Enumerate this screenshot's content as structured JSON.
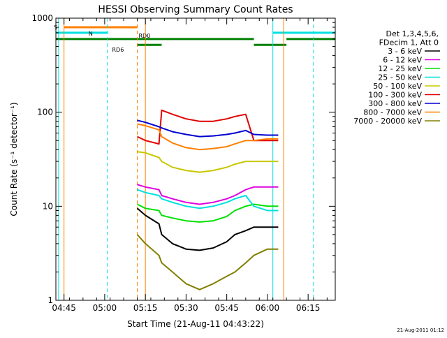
{
  "chart_data": {
    "type": "line",
    "title": "HESSI Observing Summary Count Rates",
    "xlabel": "Start Time (21-Aug-11 04:43:22)",
    "ylabel": "Count Rate (s⁻¹ detector⁻¹)",
    "x_unit": "time",
    "xlim": [
      "04:42",
      "06:25"
    ],
    "ylim": [
      1,
      1000
    ],
    "y_scale": "log",
    "x_ticks": [
      "04:45",
      "05:00",
      "05:15",
      "05:30",
      "05:45",
      "06:00",
      "06:15"
    ],
    "y_ticks": [
      "1",
      "10",
      "100",
      "1000"
    ],
    "legend_position": "right",
    "legend_header": [
      "Det 1,3,4,5,6,",
      "FDecim 1, Att 0"
    ],
    "footer_stamp": "21-Aug-2011 01:12",
    "grid": false,
    "series": [
      {
        "name": "3 - 6 keV",
        "color": "#000000",
        "points": [
          [
            "05:12",
            9.5
          ],
          [
            "05:15",
            8
          ],
          [
            "05:20",
            6.5
          ],
          [
            "05:21",
            5
          ],
          [
            "05:25",
            4
          ],
          [
            "05:30",
            3.5
          ],
          [
            "05:35",
            3.4
          ],
          [
            "05:40",
            3.6
          ],
          [
            "05:45",
            4.2
          ],
          [
            "05:48",
            5
          ],
          [
            "05:52",
            5.5
          ],
          [
            "05:55",
            6
          ],
          [
            "06:00",
            6
          ],
          [
            "06:04",
            6
          ]
        ]
      },
      {
        "name": "6 - 12 keV",
        "color": "#e000e0",
        "points": [
          [
            "05:12",
            17
          ],
          [
            "05:15",
            16
          ],
          [
            "05:20",
            15
          ],
          [
            "05:21",
            13
          ],
          [
            "05:25",
            12
          ],
          [
            "05:30",
            11
          ],
          [
            "05:35",
            10.5
          ],
          [
            "05:40",
            11
          ],
          [
            "05:45",
            12
          ],
          [
            "05:48",
            13
          ],
          [
            "05:52",
            15
          ],
          [
            "05:55",
            16
          ],
          [
            "06:00",
            16
          ],
          [
            "06:04",
            16
          ]
        ]
      },
      {
        "name": "12 - 25 keV",
        "color": "#00e000",
        "points": [
          [
            "05:12",
            10.5
          ],
          [
            "05:15",
            9.5
          ],
          [
            "05:20",
            9
          ],
          [
            "05:21",
            8
          ],
          [
            "05:25",
            7.5
          ],
          [
            "05:30",
            7
          ],
          [
            "05:35",
            6.8
          ],
          [
            "05:40",
            7
          ],
          [
            "05:45",
            7.8
          ],
          [
            "05:48",
            9
          ],
          [
            "05:52",
            10
          ],
          [
            "05:55",
            10.5
          ],
          [
            "06:00",
            10
          ],
          [
            "06:04",
            10
          ]
        ]
      },
      {
        "name": "25 - 50 keV",
        "color": "#00e0e0",
        "points": [
          [
            "05:12",
            15
          ],
          [
            "05:15",
            14
          ],
          [
            "05:20",
            13
          ],
          [
            "05:21",
            12
          ],
          [
            "05:25",
            11
          ],
          [
            "05:30",
            10
          ],
          [
            "05:35",
            9.5
          ],
          [
            "05:40",
            10
          ],
          [
            "05:45",
            11
          ],
          [
            "05:48",
            12
          ],
          [
            "05:52",
            13
          ],
          [
            "05:55",
            10
          ],
          [
            "06:00",
            9
          ],
          [
            "06:04",
            9
          ]
        ]
      },
      {
        "name": "50 - 100 keV",
        "color": "#c8c800",
        "points": [
          [
            "05:12",
            38
          ],
          [
            "05:15",
            37
          ],
          [
            "05:20",
            33
          ],
          [
            "05:21",
            30
          ],
          [
            "05:25",
            26
          ],
          [
            "05:30",
            24
          ],
          [
            "05:35",
            23
          ],
          [
            "05:40",
            24
          ],
          [
            "05:45",
            26
          ],
          [
            "05:48",
            28
          ],
          [
            "05:52",
            30
          ],
          [
            "05:55",
            30
          ],
          [
            "06:00",
            30
          ],
          [
            "06:04",
            30
          ]
        ]
      },
      {
        "name": "100 - 300 keV",
        "color": "#e00000",
        "points": [
          [
            "05:12",
            55
          ],
          [
            "05:15",
            50
          ],
          [
            "05:20",
            46
          ],
          [
            "05:21",
            105
          ],
          [
            "05:25",
            95
          ],
          [
            "05:30",
            85
          ],
          [
            "05:35",
            80
          ],
          [
            "05:40",
            80
          ],
          [
            "05:45",
            85
          ],
          [
            "05:48",
            90
          ],
          [
            "05:52",
            95
          ],
          [
            "05:55",
            50
          ],
          [
            "06:00",
            50
          ],
          [
            "06:04",
            50
          ]
        ]
      },
      {
        "name": "300 - 800 keV",
        "color": "#0000d0",
        "points": [
          [
            "05:12",
            82
          ],
          [
            "05:15",
            78
          ],
          [
            "05:20",
            70
          ],
          [
            "05:21",
            68
          ],
          [
            "05:25",
            62
          ],
          [
            "05:30",
            58
          ],
          [
            "05:35",
            55
          ],
          [
            "05:40",
            56
          ],
          [
            "05:45",
            58
          ],
          [
            "05:48",
            60
          ],
          [
            "05:52",
            64
          ],
          [
            "05:55",
            58
          ],
          [
            "06:00",
            57
          ],
          [
            "06:04",
            57
          ]
        ]
      },
      {
        "name": "800 - 7000 keV",
        "color": "#ff8000",
        "points": [
          [
            "05:12",
            75
          ],
          [
            "05:15",
            72
          ],
          [
            "05:20",
            65
          ],
          [
            "05:21",
            55
          ],
          [
            "05:25",
            47
          ],
          [
            "05:30",
            42
          ],
          [
            "05:35",
            40
          ],
          [
            "05:40",
            41
          ],
          [
            "05:45",
            43
          ],
          [
            "05:48",
            46
          ],
          [
            "05:52",
            50
          ],
          [
            "05:55",
            50
          ],
          [
            "06:00",
            52
          ],
          [
            "06:04",
            52
          ]
        ]
      },
      {
        "name": "7000 - 20000 keV",
        "color": "#808000",
        "points": [
          [
            "05:12",
            5
          ],
          [
            "05:15",
            4
          ],
          [
            "05:20",
            3
          ],
          [
            "05:21",
            2.5
          ],
          [
            "05:25",
            2
          ],
          [
            "05:30",
            1.5
          ],
          [
            "05:35",
            1.3
          ],
          [
            "05:40",
            1.5
          ],
          [
            "05:45",
            1.8
          ],
          [
            "05:48",
            2
          ],
          [
            "05:52",
            2.5
          ],
          [
            "05:55",
            3
          ],
          [
            "06:00",
            3.5
          ],
          [
            "06:04",
            3.5
          ]
        ]
      }
    ],
    "flag_bars": [
      {
        "label": "S",
        "color": "#ff8000",
        "level": 800,
        "segments": [
          [
            "04:45",
            "05:12"
          ]
        ]
      },
      {
        "label": "N",
        "color": "#00e0e0",
        "level": 700,
        "segments": [
          [
            "04:42",
            "05:01"
          ],
          [
            "06:02",
            "06:25"
          ]
        ]
      },
      {
        "label": "RD0",
        "color": "#008000",
        "level": 600,
        "segments": [
          [
            "04:42",
            "05:55"
          ],
          [
            "06:07",
            "06:25"
          ]
        ]
      },
      {
        "label": "RD6",
        "color": "#008000",
        "level": 520,
        "segments": [
          [
            "05:12",
            "05:21"
          ],
          [
            "05:55",
            "06:07"
          ]
        ]
      }
    ],
    "vertical_markers": [
      {
        "time": "04:45",
        "color": "#ff8000",
        "style": "solid"
      },
      {
        "time": "04:43",
        "color": "#00e0e0",
        "style": "solid"
      },
      {
        "time": "05:01",
        "color": "#00e0e0",
        "style": "dashed"
      },
      {
        "time": "05:12",
        "color": "#ff8000",
        "style": "dashed"
      },
      {
        "time": "05:15",
        "color": "#ff8000",
        "style": "solid"
      },
      {
        "time": "06:02",
        "color": "#00e0e0",
        "style": "solid"
      },
      {
        "time": "06:06",
        "color": "#ff8000",
        "style": "solid"
      },
      {
        "time": "06:17",
        "color": "#00e0e0",
        "style": "dashed"
      }
    ]
  }
}
